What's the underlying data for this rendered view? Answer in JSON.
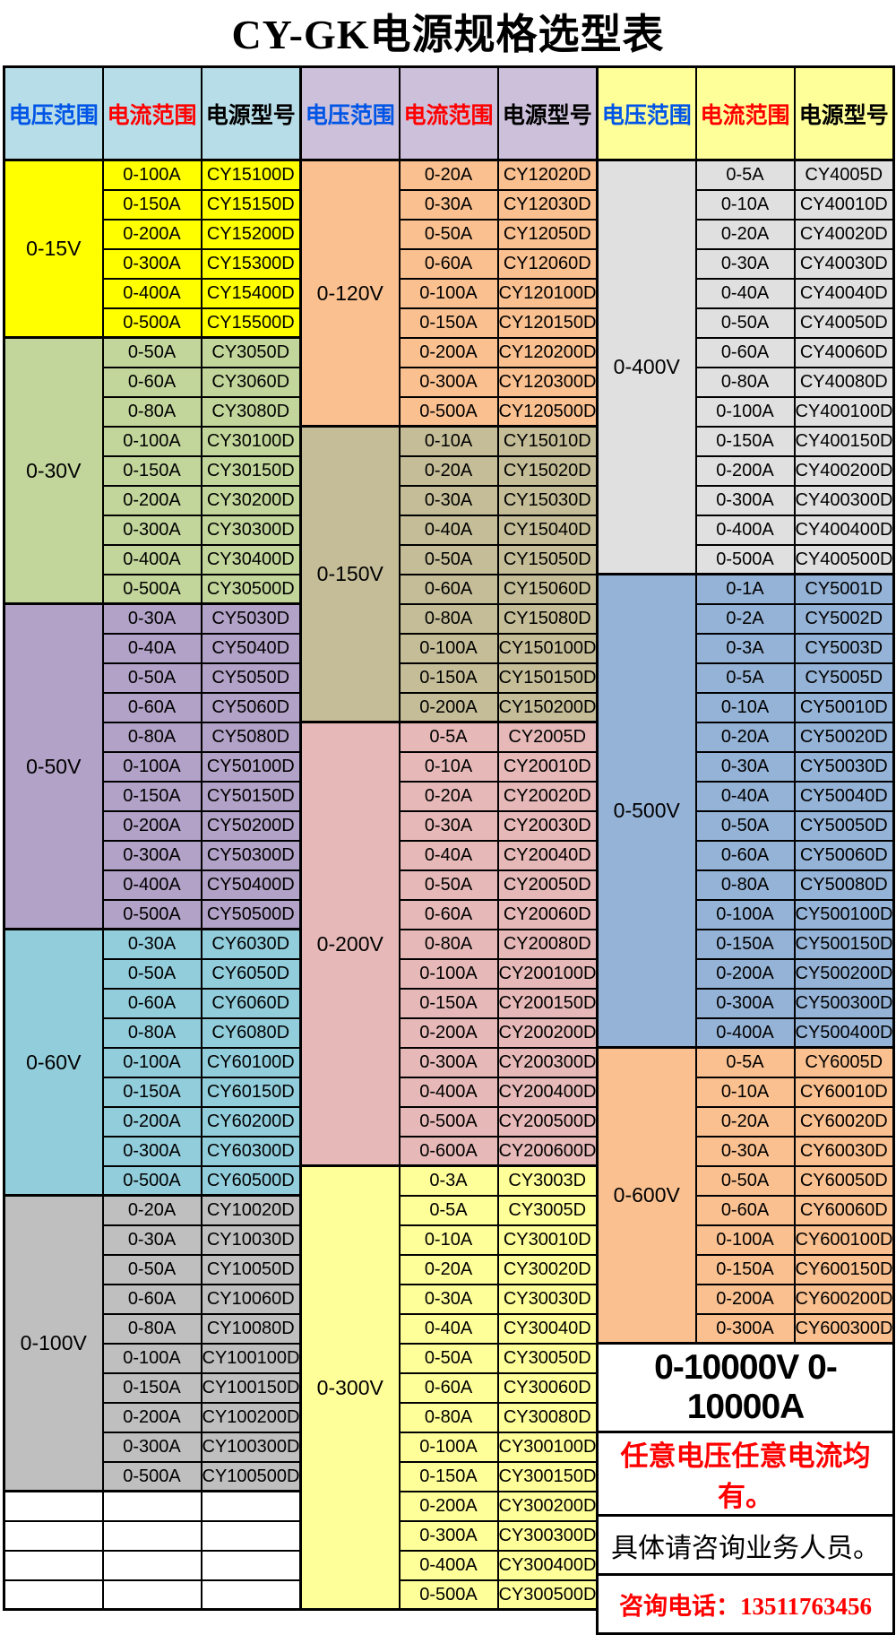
{
  "title": "CY-GK电源规格选型表",
  "colors": {
    "border": "#000000",
    "page_bg": "#ffffff",
    "voltage_header_text": "#0055e6",
    "current_header_text": "#ff0000",
    "model_header_text": "#000000"
  },
  "header": {
    "columns": [
      {
        "id": "voltage",
        "label": "电压范围",
        "text_color": "#0055e6"
      },
      {
        "id": "current",
        "label": "电流范围",
        "text_color": "#ff0000"
      },
      {
        "id": "model",
        "label": "电源型号",
        "text_color": "#000000"
      }
    ]
  },
  "groups": [
    {
      "header_bg": "#b7dee8",
      "sections": [
        {
          "voltage": "0-15V",
          "bg": "#ffff00",
          "rows": [
            [
              "0-100A",
              "CY15100D"
            ],
            [
              "0-150A",
              "CY15150D"
            ],
            [
              "0-200A",
              "CY15200D"
            ],
            [
              "0-300A",
              "CY15300D"
            ],
            [
              "0-400A",
              "CY15400D"
            ],
            [
              "0-500A",
              "CY15500D"
            ]
          ]
        },
        {
          "voltage": "0-30V",
          "bg": "#c2d69b",
          "rows": [
            [
              "0-50A",
              "CY3050D"
            ],
            [
              "0-60A",
              "CY3060D"
            ],
            [
              "0-80A",
              "CY3080D"
            ],
            [
              "0-100A",
              "CY30100D"
            ],
            [
              "0-150A",
              "CY30150D"
            ],
            [
              "0-200A",
              "CY30200D"
            ],
            [
              "0-300A",
              "CY30300D"
            ],
            [
              "0-400A",
              "CY30400D"
            ],
            [
              "0-500A",
              "CY30500D"
            ]
          ]
        },
        {
          "voltage": "0-50V",
          "bg": "#b2a2c7",
          "rows": [
            [
              "0-30A",
              "CY5030D"
            ],
            [
              "0-40A",
              "CY5040D"
            ],
            [
              "0-50A",
              "CY5050D"
            ],
            [
              "0-60A",
              "CY5060D"
            ],
            [
              "0-80A",
              "CY5080D"
            ],
            [
              "0-100A",
              "CY50100D"
            ],
            [
              "0-150A",
              "CY50150D"
            ],
            [
              "0-200A",
              "CY50200D"
            ],
            [
              "0-300A",
              "CY50300D"
            ],
            [
              "0-400A",
              "CY50400D"
            ],
            [
              "0-500A",
              "CY50500D"
            ]
          ]
        },
        {
          "voltage": "0-60V",
          "bg": "#92cddc",
          "rows": [
            [
              "0-30A",
              "CY6030D"
            ],
            [
              "0-50A",
              "CY6050D"
            ],
            [
              "0-60A",
              "CY6060D"
            ],
            [
              "0-80A",
              "CY6080D"
            ],
            [
              "0-100A",
              "CY60100D"
            ],
            [
              "0-150A",
              "CY60150D"
            ],
            [
              "0-200A",
              "CY60200D"
            ],
            [
              "0-300A",
              "CY60300D"
            ],
            [
              "0-500A",
              "CY60500D"
            ]
          ]
        },
        {
          "voltage": "0-100V",
          "bg": "#bfbfbf",
          "rows": [
            [
              "0-20A",
              "CY10020D"
            ],
            [
              "0-30A",
              "CY10030D"
            ],
            [
              "0-50A",
              "CY10050D"
            ],
            [
              "0-60A",
              "CY10060D"
            ],
            [
              "0-80A",
              "CY10080D"
            ],
            [
              "0-100A",
              "CY100100D"
            ],
            [
              "0-150A",
              "CY100150D"
            ],
            [
              "0-200A",
              "CY100200D"
            ],
            [
              "0-300A",
              "CY100300D"
            ],
            [
              "0-500A",
              "CY100500D"
            ]
          ]
        },
        {
          "voltage": null,
          "bg": "#ffffff",
          "rows": [
            [
              "",
              ""
            ],
            [
              "",
              ""
            ],
            [
              "",
              ""
            ],
            [
              "",
              ""
            ]
          ]
        }
      ]
    },
    {
      "header_bg": "#ccc0da",
      "sections": [
        {
          "voltage": "0-120V",
          "bg": "#fac090",
          "rows": [
            [
              "0-20A",
              "CY12020D"
            ],
            [
              "0-30A",
              "CY12030D"
            ],
            [
              "0-50A",
              "CY12050D"
            ],
            [
              "0-60A",
              "CY12060D"
            ],
            [
              "0-100A",
              "CY120100D"
            ],
            [
              "0-150A",
              "CY120150D"
            ],
            [
              "0-200A",
              "CY120200D"
            ],
            [
              "0-300A",
              "CY120300D"
            ],
            [
              "0-500A",
              "CY120500D"
            ]
          ]
        },
        {
          "voltage": "0-150V",
          "bg": "#c4bd97",
          "rows": [
            [
              "0-10A",
              "CY15010D"
            ],
            [
              "0-20A",
              "CY15020D"
            ],
            [
              "0-30A",
              "CY15030D"
            ],
            [
              "0-40A",
              "CY15040D"
            ],
            [
              "0-50A",
              "CY15050D"
            ],
            [
              "0-60A",
              "CY15060D"
            ],
            [
              "0-80A",
              "CY15080D"
            ],
            [
              "0-100A",
              "CY150100D"
            ],
            [
              "0-150A",
              "CY150150D"
            ],
            [
              "0-200A",
              "CY150200D"
            ]
          ]
        },
        {
          "voltage": "0-200V",
          "bg": "#e6b9b8",
          "rows": [
            [
              "0-5A",
              "CY2005D"
            ],
            [
              "0-10A",
              "CY20010D"
            ],
            [
              "0-20A",
              "CY20020D"
            ],
            [
              "0-30A",
              "CY20030D"
            ],
            [
              "0-40A",
              "CY20040D"
            ],
            [
              "0-50A",
              "CY20050D"
            ],
            [
              "0-60A",
              "CY20060D"
            ],
            [
              "0-80A",
              "CY20080D"
            ],
            [
              "0-100A",
              "CY200100D"
            ],
            [
              "0-150A",
              "CY200150D"
            ],
            [
              "0-200A",
              "CY200200D"
            ],
            [
              "0-300A",
              "CY200300D"
            ],
            [
              "0-400A",
              "CY200400D"
            ],
            [
              "0-500A",
              "CY200500D"
            ],
            [
              "0-600A",
              "CY200600D"
            ]
          ]
        },
        {
          "voltage": "0-300V",
          "bg": "#ffff99",
          "rows": [
            [
              "0-3A",
              "CY3003D"
            ],
            [
              "0-5A",
              "CY3005D"
            ],
            [
              "0-10A",
              "CY30010D"
            ],
            [
              "0-20A",
              "CY30020D"
            ],
            [
              "0-30A",
              "CY30030D"
            ],
            [
              "0-40A",
              "CY30040D"
            ],
            [
              "0-50A",
              "CY30050D"
            ],
            [
              "0-60A",
              "CY30060D"
            ],
            [
              "0-80A",
              "CY30080D"
            ],
            [
              "0-100A",
              "CY300100D"
            ],
            [
              "0-150A",
              "CY300150D"
            ],
            [
              "0-200A",
              "CY300200D"
            ],
            [
              "0-300A",
              "CY300300D"
            ],
            [
              "0-400A",
              "CY300400D"
            ],
            [
              "0-500A",
              "CY300500D"
            ]
          ]
        }
      ]
    },
    {
      "header_bg": "#ffff99",
      "sections": [
        {
          "voltage": "0-400V",
          "bg": "#e0e0e0",
          "rows": [
            [
              "0-5A",
              "CY4005D"
            ],
            [
              "0-10A",
              "CY40010D"
            ],
            [
              "0-20A",
              "CY40020D"
            ],
            [
              "0-30A",
              "CY40030D"
            ],
            [
              "0-40A",
              "CY40040D"
            ],
            [
              "0-50A",
              "CY40050D"
            ],
            [
              "0-60A",
              "CY40060D"
            ],
            [
              "0-80A",
              "CY40080D"
            ],
            [
              "0-100A",
              "CY400100D"
            ],
            [
              "0-150A",
              "CY400150D"
            ],
            [
              "0-200A",
              "CY400200D"
            ],
            [
              "0-300A",
              "CY400300D"
            ],
            [
              "0-400A",
              "CY400400D"
            ],
            [
              "0-500A",
              "CY400500D"
            ]
          ]
        },
        {
          "voltage": "0-500V",
          "bg": "#95b3d7",
          "rows": [
            [
              "0-1A",
              "CY5001D"
            ],
            [
              "0-2A",
              "CY5002D"
            ],
            [
              "0-3A",
              "CY5003D"
            ],
            [
              "0-5A",
              "CY5005D"
            ],
            [
              "0-10A",
              "CY50010D"
            ],
            [
              "0-20A",
              "CY50020D"
            ],
            [
              "0-30A",
              "CY50030D"
            ],
            [
              "0-40A",
              "CY50040D"
            ],
            [
              "0-50A",
              "CY50050D"
            ],
            [
              "0-60A",
              "CY50060D"
            ],
            [
              "0-80A",
              "CY50080D"
            ],
            [
              "0-100A",
              "CY500100D"
            ],
            [
              "0-150A",
              "CY500150D"
            ],
            [
              "0-200A",
              "CY500200D"
            ],
            [
              "0-300A",
              "CY500300D"
            ],
            [
              "0-400A",
              "CY500400D"
            ]
          ]
        },
        {
          "voltage": "0-600V",
          "bg": "#fac090",
          "rows": [
            [
              "0-5A",
              "CY6005D"
            ],
            [
              "0-10A",
              "CY60010D"
            ],
            [
              "0-20A",
              "CY60020D"
            ],
            [
              "0-30A",
              "CY60030D"
            ],
            [
              "0-50A",
              "CY60050D"
            ],
            [
              "0-60A",
              "CY60060D"
            ],
            [
              "0-100A",
              "CY600100D"
            ],
            [
              "0-150A",
              "CY600150D"
            ],
            [
              "0-200A",
              "CY600200D"
            ],
            [
              "0-300A",
              "CY600300D"
            ]
          ]
        }
      ],
      "notes": [
        {
          "name": "note-capability-range",
          "text": "0-10000V 0-10000A",
          "rows": 3,
          "style": "note-big"
        },
        {
          "name": "note-any-voltage-current",
          "text": "任意电压任意电流均有。",
          "rows": 2,
          "style": "note-red"
        },
        {
          "name": "note-contact-sales",
          "text": "具体请咨询业务人员。",
          "rows": 2,
          "style": "note-plain"
        },
        {
          "name": "note-phone",
          "text": "咨询电话：13511763456",
          "rows": 2,
          "style": "note-phone"
        }
      ]
    }
  ]
}
